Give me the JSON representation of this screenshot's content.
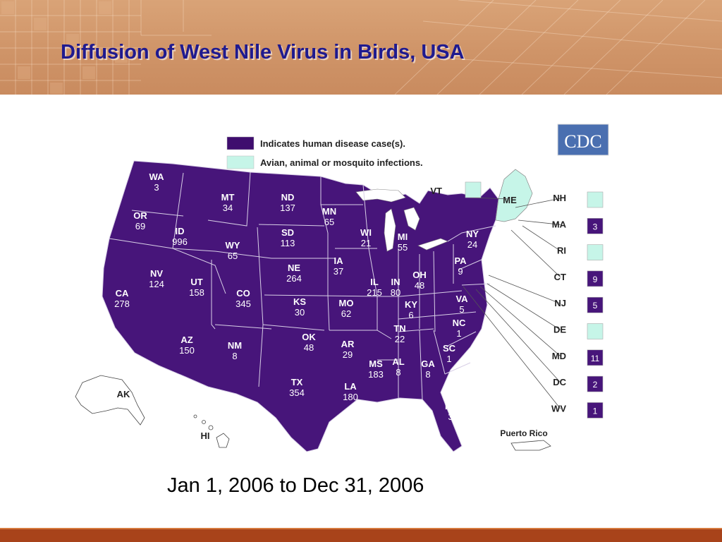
{
  "title": "Diffusion of West Nile Virus in Birds, USA",
  "date_range": "Jan 1, 2006 to Dec 31, 2006",
  "logo_text": "CDC",
  "legend": [
    {
      "label": "Indicates human disease case(s).",
      "color": "#3f0d6e"
    },
    {
      "label": "Avian, animal or mosquito infections.",
      "color": "#c6f5e8"
    }
  ],
  "colors": {
    "human": "#47157a",
    "animal": "#c6f5e8",
    "border": "#d8cfe6",
    "logo_bg": "#4a6fb0"
  },
  "states": [
    {
      "abbr": "WA",
      "count": "3"
    },
    {
      "abbr": "OR",
      "count": "69"
    },
    {
      "abbr": "CA",
      "count": "278"
    },
    {
      "abbr": "ID",
      "count": "996"
    },
    {
      "abbr": "NV",
      "count": "124"
    },
    {
      "abbr": "MT",
      "count": "34"
    },
    {
      "abbr": "WY",
      "count": "65"
    },
    {
      "abbr": "UT",
      "count": "158"
    },
    {
      "abbr": "AZ",
      "count": "150"
    },
    {
      "abbr": "CO",
      "count": "345"
    },
    {
      "abbr": "NM",
      "count": "8"
    },
    {
      "abbr": "ND",
      "count": "137"
    },
    {
      "abbr": "SD",
      "count": "113"
    },
    {
      "abbr": "NE",
      "count": "264"
    },
    {
      "abbr": "KS",
      "count": "30"
    },
    {
      "abbr": "OK",
      "count": "48"
    },
    {
      "abbr": "TX",
      "count": "354"
    },
    {
      "abbr": "MN",
      "count": "65"
    },
    {
      "abbr": "IA",
      "count": "37"
    },
    {
      "abbr": "MO",
      "count": "62"
    },
    {
      "abbr": "AR",
      "count": "29"
    },
    {
      "abbr": "LA",
      "count": "180"
    },
    {
      "abbr": "WI",
      "count": "21"
    },
    {
      "abbr": "IL",
      "count": "215"
    },
    {
      "abbr": "MI",
      "count": "55"
    },
    {
      "abbr": "IN",
      "count": "80"
    },
    {
      "abbr": "OH",
      "count": "48"
    },
    {
      "abbr": "KY",
      "count": "6"
    },
    {
      "abbr": "TN",
      "count": "22"
    },
    {
      "abbr": "MS",
      "count": "183"
    },
    {
      "abbr": "AL",
      "count": "8"
    },
    {
      "abbr": "GA",
      "count": "8"
    },
    {
      "abbr": "FL",
      "count": "3"
    },
    {
      "abbr": "SC",
      "count": "1"
    },
    {
      "abbr": "NC",
      "count": "1"
    },
    {
      "abbr": "VA",
      "count": "5"
    },
    {
      "abbr": "PA",
      "count": "9"
    },
    {
      "abbr": "NY",
      "count": "24"
    },
    {
      "abbr": "ME",
      "count": ""
    }
  ],
  "callouts": [
    {
      "abbr": "VT",
      "count": "",
      "status": "animal"
    },
    {
      "abbr": "NH",
      "count": "",
      "status": "animal"
    },
    {
      "abbr": "MA",
      "count": "3",
      "status": "human"
    },
    {
      "abbr": "RI",
      "count": "",
      "status": "animal"
    },
    {
      "abbr": "CT",
      "count": "9",
      "status": "human"
    },
    {
      "abbr": "NJ",
      "count": "5",
      "status": "human"
    },
    {
      "abbr": "DE",
      "count": "",
      "status": "animal"
    },
    {
      "abbr": "MD",
      "count": "11",
      "status": "human"
    },
    {
      "abbr": "DC",
      "count": "2",
      "status": "human"
    },
    {
      "abbr": "WV",
      "count": "1",
      "status": "human"
    }
  ],
  "other_labels": [
    {
      "label": "AK"
    },
    {
      "label": "HI"
    },
    {
      "label": "Puerto Rico"
    }
  ]
}
